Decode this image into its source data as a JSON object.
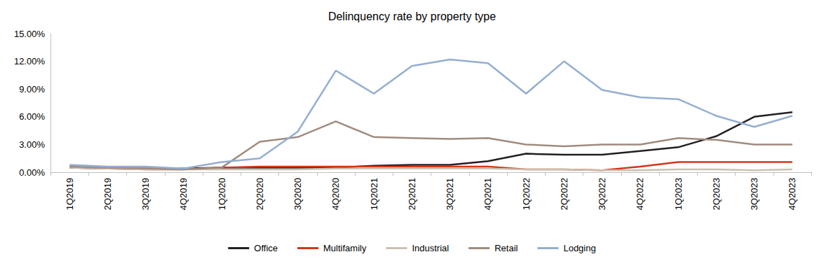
{
  "chart_data": {
    "type": "line",
    "title": "Delinquency rate by property type",
    "categories": [
      "1Q2019",
      "2Q2019",
      "3Q2019",
      "4Q2019",
      "1Q2020",
      "2Q2020",
      "3Q2020",
      "4Q2020",
      "1Q2021",
      "2Q2021",
      "3Q2021",
      "4Q2021",
      "1Q2022",
      "2Q2022",
      "3Q2022",
      "4Q2022",
      "1Q2023",
      "2Q2023",
      "3Q2023",
      "4Q2023"
    ],
    "series": [
      {
        "name": "Office",
        "color": "#231f20",
        "values": [
          0.5,
          0.4,
          0.4,
          0.4,
          0.5,
          0.5,
          0.5,
          0.5,
          0.7,
          0.8,
          0.8,
          1.2,
          2.0,
          1.9,
          1.9,
          2.3,
          2.7,
          3.9,
          6.0,
          6.5
        ]
      },
      {
        "name": "Multifamily",
        "color": "#d2361d",
        "values": [
          0.5,
          0.4,
          0.3,
          0.3,
          0.5,
          0.6,
          0.6,
          0.6,
          0.6,
          0.6,
          0.6,
          0.6,
          0.3,
          0.3,
          0.2,
          0.6,
          1.1,
          1.1,
          1.1,
          1.1
        ]
      },
      {
        "name": "Industrial",
        "color": "#c9c0b1",
        "values": [
          0.5,
          0.4,
          0.3,
          0.3,
          0.3,
          0.3,
          0.3,
          0.4,
          0.4,
          0.4,
          0.4,
          0.4,
          0.3,
          0.3,
          0.2,
          0.2,
          0.3,
          0.3,
          0.2,
          0.3
        ]
      },
      {
        "name": "Retail",
        "color": "#a08b7d",
        "values": [
          0.6,
          0.5,
          0.4,
          0.3,
          0.5,
          3.3,
          3.8,
          5.5,
          3.8,
          3.7,
          3.6,
          3.7,
          3.0,
          2.8,
          3.0,
          3.0,
          3.7,
          3.5,
          3.0,
          3.0
        ]
      },
      {
        "name": "Lodging",
        "color": "#93aed0",
        "values": [
          0.8,
          0.6,
          0.6,
          0.4,
          1.1,
          1.5,
          4.4,
          11.0,
          8.5,
          11.5,
          12.2,
          11.8,
          8.5,
          12.0,
          8.9,
          8.1,
          7.9,
          6.1,
          4.9,
          6.1
        ]
      }
    ],
    "ylim": [
      0,
      15
    ],
    "yticks": [
      {
        "value": 0,
        "label": "0.00%"
      },
      {
        "value": 3,
        "label": "3.00%"
      },
      {
        "value": 6,
        "label": "6.00%"
      },
      {
        "value": 9,
        "label": "9.00%"
      },
      {
        "value": 12,
        "label": "12.00%"
      },
      {
        "value": 15,
        "label": "15.00%"
      }
    ],
    "grid": false,
    "legend": "bottom"
  }
}
